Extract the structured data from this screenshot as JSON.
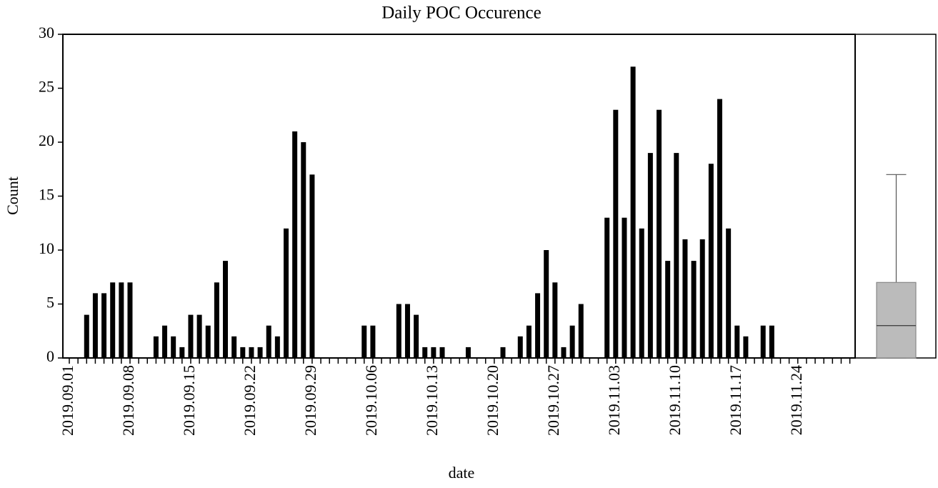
{
  "chart_data": [
    {
      "type": "bar",
      "title": "Daily POC Occurence",
      "x_label": "date",
      "y_label": "Count",
      "color": "#000000",
      "categories": [
        "2019.09.01",
        null,
        null,
        null,
        null,
        null,
        null,
        "2019.09.08",
        null,
        null,
        null,
        null,
        null,
        null,
        "2019.09.15",
        null,
        null,
        null,
        null,
        null,
        null,
        "2019.09.22",
        null,
        null,
        null,
        null,
        null,
        null,
        "2019.09.29",
        null,
        null,
        null,
        null,
        null,
        null,
        "2019.10.06",
        null,
        null,
        null,
        null,
        null,
        null,
        "2019.10.13",
        null,
        null,
        null,
        null,
        null,
        null,
        "2019.10.20",
        null,
        null,
        null,
        null,
        null,
        null,
        "2019.10.27",
        null,
        null,
        null,
        null,
        null,
        null,
        "2019.11.03",
        null,
        null,
        null,
        null,
        null,
        null,
        "2019.11.10",
        null,
        null,
        null,
        null,
        null,
        null,
        "2019.11.17",
        null,
        null,
        null,
        null,
        null,
        null,
        "2019.11.24",
        null,
        null,
        null,
        null,
        null,
        null
      ],
      "values": [
        0,
        0,
        4,
        6,
        6,
        7,
        7,
        7,
        0,
        0,
        2,
        3,
        2,
        1,
        4,
        4,
        3,
        7,
        9,
        2,
        1,
        1,
        1,
        3,
        2,
        12,
        21,
        20,
        17,
        0,
        0,
        0,
        0,
        0,
        3,
        3,
        0,
        0,
        5,
        5,
        4,
        1,
        1,
        1,
        0,
        0,
        1,
        0,
        0,
        0,
        1,
        0,
        2,
        3,
        6,
        10,
        7,
        1,
        3,
        5,
        0,
        0,
        13,
        23,
        13,
        27,
        12,
        19,
        23,
        9,
        19,
        11,
        9,
        11,
        18,
        24,
        12,
        3,
        2,
        0,
        3,
        3,
        0,
        0,
        0,
        0,
        0,
        0,
        0,
        0,
        0
      ],
      "ylim": [
        0,
        30
      ],
      "yticks": [
        0,
        5,
        10,
        15,
        20,
        25,
        30
      ]
    },
    {
      "type": "box",
      "min": 0,
      "q1": 0,
      "median": 3,
      "q3": 7,
      "max": 17,
      "color": "#bbbbbb"
    }
  ]
}
